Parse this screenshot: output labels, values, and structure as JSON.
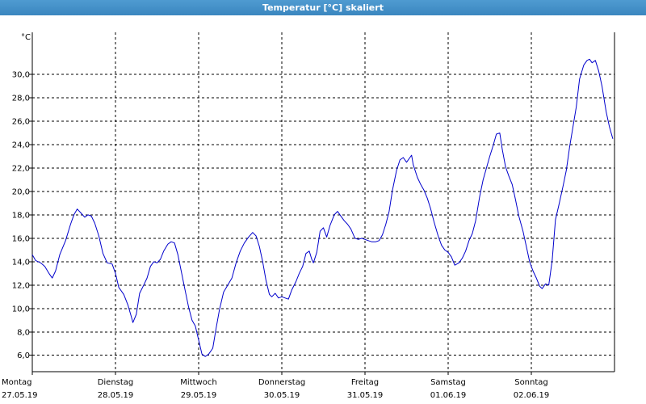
{
  "window": {
    "title": "Temperatur [°C] skaliert"
  },
  "chart_data": {
    "type": "line",
    "unit_label": "°C",
    "ylim": [
      4.6,
      33.6
    ],
    "xlim": [
      0,
      7
    ],
    "y_ticks": [
      "6,0",
      "8,0",
      "10,0",
      "12,0",
      "14,0",
      "16,0",
      "18,0",
      "20,0",
      "22,0",
      "24,0",
      "26,0",
      "28,0",
      "30,0"
    ],
    "y_tick_values": [
      6,
      8,
      10,
      12,
      14,
      16,
      18,
      20,
      22,
      24,
      26,
      28,
      30
    ],
    "x_ticks": [
      {
        "day": "Montag",
        "date": "27.05.19"
      },
      {
        "day": "Dienstag",
        "date": "28.05.19"
      },
      {
        "day": "Mittwoch",
        "date": "29.05.19"
      },
      {
        "day": "Donnerstag",
        "date": "30.05.19"
      },
      {
        "day": "Freitag",
        "date": "31.05.19"
      },
      {
        "day": "Samstag",
        "date": "01.06.19"
      },
      {
        "day": "Sonntag",
        "date": "02.06.19"
      }
    ],
    "grid": true,
    "series": [
      {
        "color": "#0000cc",
        "points": [
          [
            0.0,
            14.6
          ],
          [
            0.04,
            14.1
          ],
          [
            0.1,
            13.9
          ],
          [
            0.15,
            13.6
          ],
          [
            0.2,
            13.0
          ],
          [
            0.24,
            12.6
          ],
          [
            0.28,
            13.2
          ],
          [
            0.33,
            14.6
          ],
          [
            0.4,
            15.8
          ],
          [
            0.46,
            17.2
          ],
          [
            0.5,
            18.0
          ],
          [
            0.54,
            18.5
          ],
          [
            0.58,
            18.2
          ],
          [
            0.63,
            17.8
          ],
          [
            0.67,
            18.0
          ],
          [
            0.71,
            17.9
          ],
          [
            0.75,
            17.3
          ],
          [
            0.8,
            16.2
          ],
          [
            0.85,
            14.7
          ],
          [
            0.9,
            13.9
          ],
          [
            0.96,
            13.8
          ],
          [
            1.0,
            13.0
          ],
          [
            1.04,
            11.8
          ],
          [
            1.1,
            11.2
          ],
          [
            1.15,
            10.3
          ],
          [
            1.19,
            9.3
          ],
          [
            1.21,
            8.8
          ],
          [
            1.25,
            9.5
          ],
          [
            1.29,
            11.3
          ],
          [
            1.34,
            12.0
          ],
          [
            1.38,
            12.6
          ],
          [
            1.42,
            13.6
          ],
          [
            1.46,
            14.0
          ],
          [
            1.5,
            13.9
          ],
          [
            1.54,
            14.2
          ],
          [
            1.58,
            14.9
          ],
          [
            1.63,
            15.5
          ],
          [
            1.67,
            15.7
          ],
          [
            1.71,
            15.6
          ],
          [
            1.75,
            14.6
          ],
          [
            1.79,
            13.2
          ],
          [
            1.83,
            11.8
          ],
          [
            1.88,
            10.1
          ],
          [
            1.92,
            9.0
          ],
          [
            1.96,
            8.5
          ],
          [
            2.0,
            7.3
          ],
          [
            2.04,
            6.1
          ],
          [
            2.08,
            5.9
          ],
          [
            2.12,
            6.1
          ],
          [
            2.17,
            6.6
          ],
          [
            2.21,
            8.3
          ],
          [
            2.25,
            9.9
          ],
          [
            2.3,
            11.4
          ],
          [
            2.35,
            12.0
          ],
          [
            2.4,
            12.6
          ],
          [
            2.45,
            13.9
          ],
          [
            2.5,
            14.9
          ],
          [
            2.55,
            15.6
          ],
          [
            2.6,
            16.1
          ],
          [
            2.65,
            16.5
          ],
          [
            2.69,
            16.2
          ],
          [
            2.73,
            15.3
          ],
          [
            2.77,
            14.0
          ],
          [
            2.81,
            12.4
          ],
          [
            2.85,
            11.2
          ],
          [
            2.88,
            11.0
          ],
          [
            2.92,
            11.3
          ],
          [
            2.96,
            10.9
          ],
          [
            3.0,
            11.0
          ],
          [
            3.04,
            10.9
          ],
          [
            3.08,
            10.8
          ],
          [
            3.12,
            11.6
          ],
          [
            3.17,
            12.3
          ],
          [
            3.21,
            13.0
          ],
          [
            3.25,
            13.6
          ],
          [
            3.29,
            14.7
          ],
          [
            3.33,
            14.9
          ],
          [
            3.36,
            14.2
          ],
          [
            3.38,
            13.9
          ],
          [
            3.42,
            14.8
          ],
          [
            3.46,
            16.6
          ],
          [
            3.5,
            16.9
          ],
          [
            3.54,
            16.1
          ],
          [
            3.58,
            17.1
          ],
          [
            3.63,
            18.0
          ],
          [
            3.67,
            18.3
          ],
          [
            3.71,
            17.9
          ],
          [
            3.75,
            17.5
          ],
          [
            3.79,
            17.2
          ],
          [
            3.83,
            16.8
          ],
          [
            3.88,
            16.0
          ],
          [
            3.92,
            15.9
          ],
          [
            3.96,
            16.0
          ],
          [
            4.0,
            15.9
          ],
          [
            4.04,
            15.8
          ],
          [
            4.08,
            15.7
          ],
          [
            4.13,
            15.7
          ],
          [
            4.17,
            15.8
          ],
          [
            4.21,
            16.3
          ],
          [
            4.25,
            17.2
          ],
          [
            4.29,
            18.3
          ],
          [
            4.33,
            20.1
          ],
          [
            4.38,
            21.8
          ],
          [
            4.42,
            22.7
          ],
          [
            4.46,
            22.9
          ],
          [
            4.5,
            22.5
          ],
          [
            4.54,
            22.9
          ],
          [
            4.56,
            23.1
          ],
          [
            4.58,
            22.3
          ],
          [
            4.63,
            21.2
          ],
          [
            4.67,
            20.6
          ],
          [
            4.71,
            20.1
          ],
          [
            4.75,
            19.4
          ],
          [
            4.79,
            18.5
          ],
          [
            4.83,
            17.4
          ],
          [
            4.88,
            16.2
          ],
          [
            4.92,
            15.4
          ],
          [
            4.96,
            15.0
          ],
          [
            5.0,
            14.8
          ],
          [
            5.04,
            14.4
          ],
          [
            5.08,
            13.7
          ],
          [
            5.13,
            13.9
          ],
          [
            5.17,
            14.3
          ],
          [
            5.21,
            14.9
          ],
          [
            5.25,
            15.8
          ],
          [
            5.29,
            16.4
          ],
          [
            5.33,
            17.5
          ],
          [
            5.38,
            19.6
          ],
          [
            5.42,
            21.0
          ],
          [
            5.46,
            22.0
          ],
          [
            5.5,
            23.0
          ],
          [
            5.54,
            23.9
          ],
          [
            5.58,
            24.9
          ],
          [
            5.62,
            25.0
          ],
          [
            5.65,
            23.6
          ],
          [
            5.69,
            22.1
          ],
          [
            5.73,
            21.3
          ],
          [
            5.77,
            20.6
          ],
          [
            5.81,
            19.3
          ],
          [
            5.85,
            17.9
          ],
          [
            5.9,
            16.6
          ],
          [
            5.94,
            15.3
          ],
          [
            5.98,
            14.0
          ],
          [
            6.02,
            13.2
          ],
          [
            6.06,
            12.6
          ],
          [
            6.1,
            11.9
          ],
          [
            6.13,
            11.7
          ],
          [
            6.17,
            12.1
          ],
          [
            6.21,
            12.0
          ],
          [
            6.25,
            14.1
          ],
          [
            6.29,
            17.6
          ],
          [
            6.33,
            18.8
          ],
          [
            6.38,
            20.4
          ],
          [
            6.42,
            21.8
          ],
          [
            6.46,
            23.8
          ],
          [
            6.5,
            25.5
          ],
          [
            6.54,
            27.2
          ],
          [
            6.58,
            29.6
          ],
          [
            6.63,
            30.8
          ],
          [
            6.67,
            31.2
          ],
          [
            6.7,
            31.3
          ],
          [
            6.73,
            31.0
          ],
          [
            6.77,
            31.2
          ],
          [
            6.81,
            30.3
          ],
          [
            6.85,
            29.0
          ],
          [
            6.9,
            26.8
          ],
          [
            6.94,
            25.5
          ],
          [
            6.98,
            24.5
          ]
        ]
      }
    ]
  }
}
